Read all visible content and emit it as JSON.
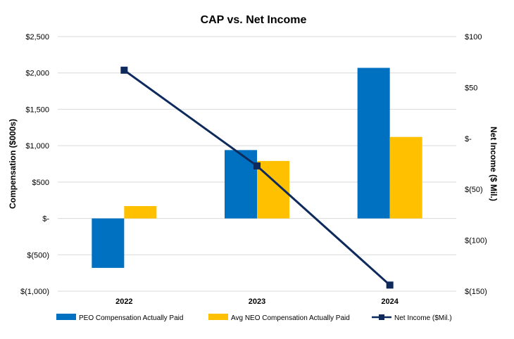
{
  "chart_data": {
    "type": "bar",
    "title": "CAP vs. Net Income",
    "categories": [
      "2022",
      "2023",
      "2024"
    ],
    "ylabel": "Compensation ($000s)",
    "y2label": "Net Income ($ Mil.)",
    "ylim": [
      -1000,
      2500
    ],
    "y2lim": [
      -150,
      100
    ],
    "yticks": [
      {
        "value": 2500,
        "label": "$2,500"
      },
      {
        "value": 2000,
        "label": "$2,000"
      },
      {
        "value": 1500,
        "label": "$1,500"
      },
      {
        "value": 1000,
        "label": "$1,000"
      },
      {
        "value": 500,
        "label": "$500"
      },
      {
        "value": 0,
        "label": "$-"
      },
      {
        "value": -500,
        "label": "$(500)"
      },
      {
        "value": -1000,
        "label": "$(1,000)"
      }
    ],
    "y2ticks": [
      {
        "value": 100,
        "label": "$100"
      },
      {
        "value": 50,
        "label": "$50"
      },
      {
        "value": 0,
        "label": "$-"
      },
      {
        "value": -50,
        "label": "$(50)"
      },
      {
        "value": -100,
        "label": "$(100)"
      },
      {
        "value": -150,
        "label": "$(150)"
      }
    ],
    "grid": true,
    "legend_position": "bottom",
    "series": [
      {
        "name": "PEO Compensation Actually Paid",
        "type": "bar",
        "axis": "left",
        "color": "#0070C0",
        "values": [
          -680,
          940,
          2070
        ]
      },
      {
        "name": "Avg NEO Compensation Actually Paid",
        "type": "bar",
        "axis": "left",
        "color": "#FFC000",
        "values": [
          170,
          790,
          1120
        ]
      },
      {
        "name": "Net Income ($Mil.)",
        "type": "line",
        "axis": "right",
        "color": "#0E2A5C",
        "marker": "square",
        "values": [
          67,
          -27,
          -144
        ]
      }
    ]
  }
}
